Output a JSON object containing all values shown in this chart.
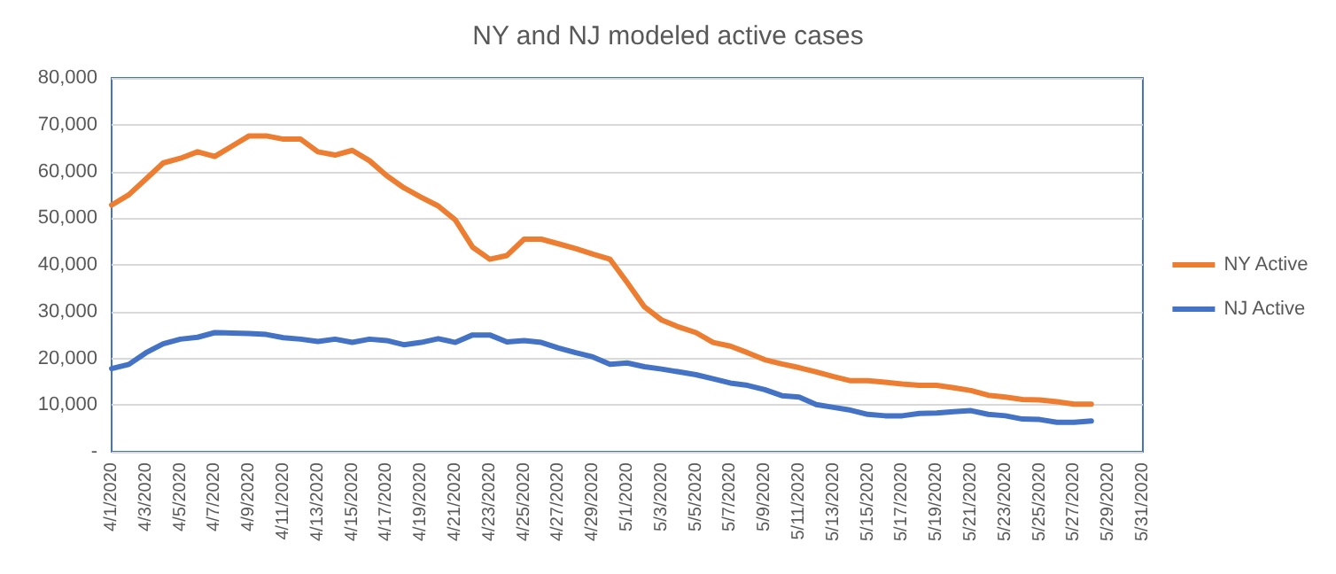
{
  "chart_data": {
    "type": "line",
    "title": "NY and NJ modeled active cases",
    "categories": [
      "4/1/2020",
      null,
      "4/3/2020",
      null,
      "4/5/2020",
      null,
      "4/7/2020",
      null,
      "4/9/2020",
      null,
      "4/11/2020",
      null,
      "4/13/2020",
      null,
      "4/15/2020",
      null,
      "4/17/2020",
      null,
      "4/19/2020",
      null,
      "4/21/2020",
      null,
      "4/23/2020",
      null,
      "4/25/2020",
      null,
      "4/27/2020",
      null,
      "4/29/2020",
      null,
      "5/1/2020",
      null,
      "5/3/2020",
      null,
      "5/5/2020",
      null,
      "5/7/2020",
      null,
      "5/9/2020",
      null,
      "5/11/2020",
      null,
      "5/13/2020",
      null,
      "5/15/2020",
      null,
      "5/17/2020",
      null,
      "5/19/2020",
      null,
      "5/21/2020",
      null,
      "5/23/2020",
      null,
      "5/25/2020",
      null,
      "5/27/2020",
      null,
      "5/29/2020",
      null,
      "5/31/2020"
    ],
    "series": [
      {
        "name": "NY Active",
        "color": "#ed7d31",
        "values": [
          52800,
          55000,
          58400,
          61800,
          62800,
          64200,
          63200,
          65400,
          67600,
          67600,
          66900,
          66900,
          64200,
          63500,
          64500,
          62300,
          59100,
          56500,
          54500,
          52600,
          49600,
          43800,
          41200,
          42000,
          45500,
          45500,
          44500,
          43500,
          42300,
          41200,
          36200,
          31000,
          28200,
          26700,
          25500,
          23400,
          22600,
          21200,
          19700,
          18800,
          18000,
          17100,
          16100,
          15200,
          15200,
          14900,
          14500,
          14200,
          14200,
          13700,
          13100,
          12100,
          11700,
          11200,
          11100,
          10700,
          10200,
          10200,
          null,
          null,
          null
        ]
      },
      {
        "name": "NJ Active",
        "color": "#4472c4",
        "values": [
          17800,
          18700,
          21200,
          23100,
          24100,
          24500,
          25500,
          25400,
          25300,
          25100,
          24400,
          24100,
          23600,
          24100,
          23400,
          24100,
          23800,
          22900,
          23400,
          24200,
          23400,
          25000,
          25000,
          23500,
          23800,
          23400,
          22200,
          21200,
          20300,
          18700,
          19000,
          18200,
          17700,
          17100,
          16500,
          15600,
          14700,
          14200,
          13300,
          12000,
          11700,
          10100,
          9500,
          8900,
          8000,
          7700,
          7700,
          8200,
          8300,
          8600,
          8800,
          8000,
          7700,
          7000,
          6900,
          6300,
          6300,
          6600,
          null,
          null,
          null
        ]
      }
    ],
    "ylim": [
      0,
      80000
    ],
    "yticks": [
      {
        "value": 0,
        "label": "-"
      },
      {
        "value": 10000,
        "label": "10,000"
      },
      {
        "value": 20000,
        "label": "20,000"
      },
      {
        "value": 30000,
        "label": "30,000"
      },
      {
        "value": 40000,
        "label": "40,000"
      },
      {
        "value": 50000,
        "label": "50,000"
      },
      {
        "value": 60000,
        "label": "60,000"
      },
      {
        "value": 70000,
        "label": "70,000"
      },
      {
        "value": 80000,
        "label": "80,000"
      }
    ],
    "grid": "y",
    "legend": "right",
    "marker": "none",
    "line_style": "solid"
  }
}
